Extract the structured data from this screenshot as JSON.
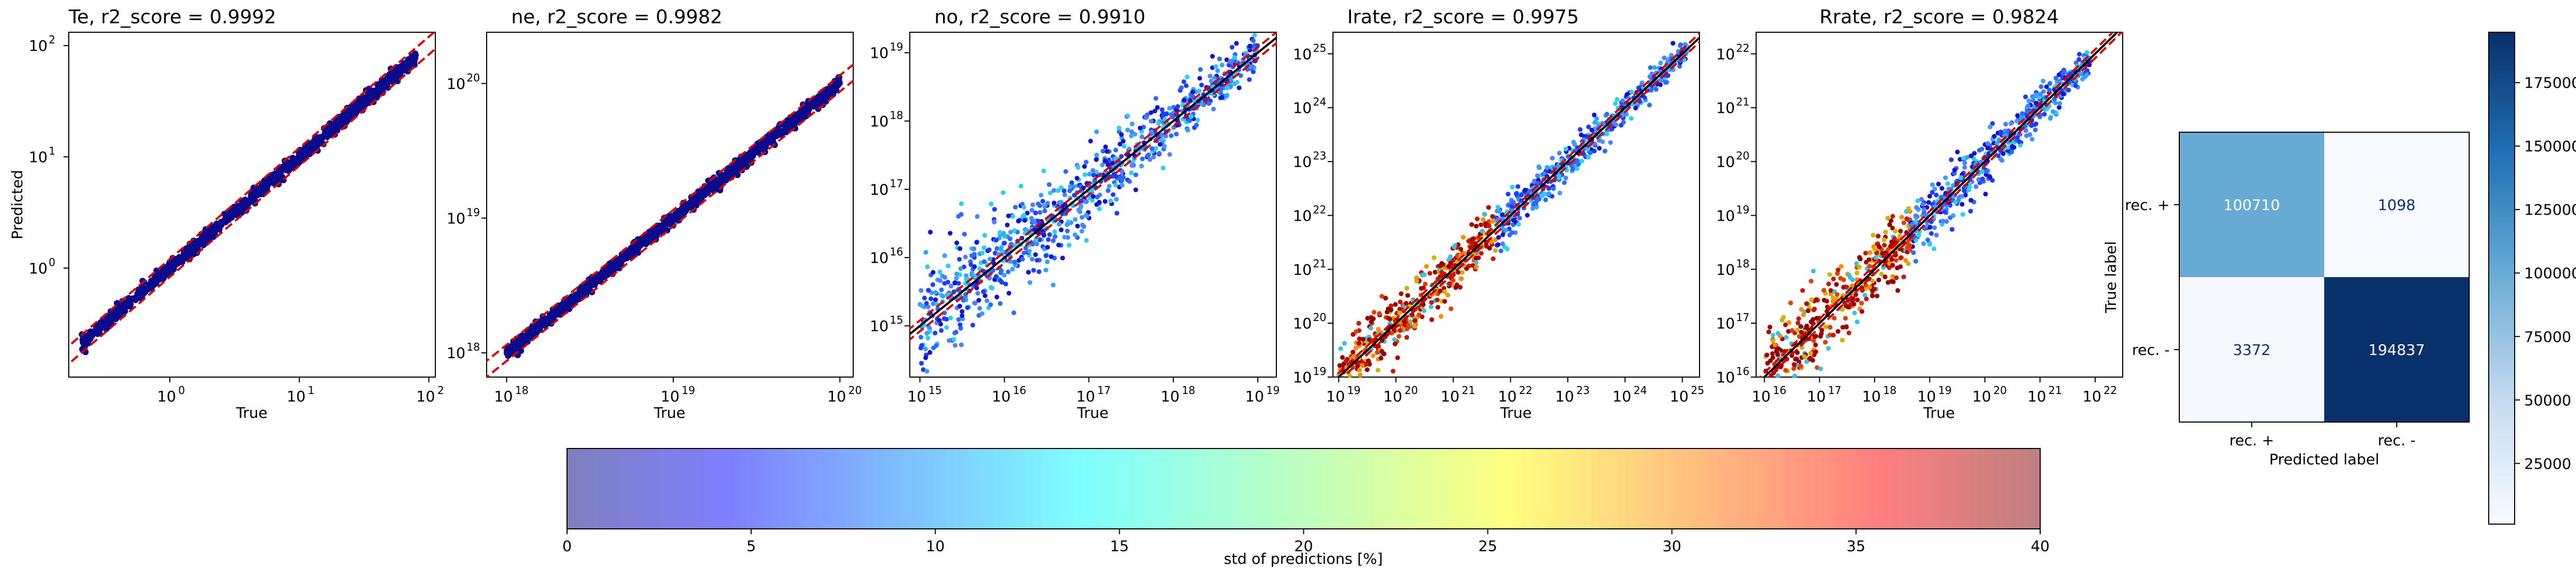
{
  "colors": {
    "point_dark": "#0a0a8c",
    "identity_line": "#000000",
    "band_line": "#d40000",
    "cm_high": "#08306b",
    "cm_mid": "#6baed6",
    "cm_low": "#f7fbff"
  },
  "chart_data": [
    {
      "type": "scatter",
      "title": "Te, r2_score = 0.9992",
      "xlabel": "True",
      "ylabel": "Predicted",
      "log_scale": true,
      "xlim_exp": [
        -0.78,
        2.05
      ],
      "ylim_exp": [
        -0.98,
        2.12
      ],
      "x_ticks": [
        {
          "label": "10",
          "exp": "0",
          "value": 0
        },
        {
          "label": "10",
          "exp": "1",
          "value": 1
        },
        {
          "label": "10",
          "exp": "2",
          "value": 2
        }
      ],
      "y_ticks": [
        {
          "label": "10",
          "exp": "0",
          "value": 0
        },
        {
          "label": "10",
          "exp": "1",
          "value": 1
        },
        {
          "label": "10",
          "exp": "2",
          "value": 2
        }
      ],
      "data_range_exp": [
        -0.68,
        1.9
      ],
      "spread_dex": 0.03,
      "band_dex": 0.08,
      "color_mode": "dark",
      "show_identity": false
    },
    {
      "type": "scatter",
      "title": "ne, r2_score = 0.9982",
      "xlabel": "True",
      "ylabel": "",
      "log_scale": true,
      "xlim_exp": [
        17.88,
        20.08
      ],
      "ylim_exp": [
        17.82,
        20.38
      ],
      "x_ticks": [
        {
          "label": "10",
          "exp": "18",
          "value": 18
        },
        {
          "label": "10",
          "exp": "19",
          "value": 19
        },
        {
          "label": "10",
          "exp": "20",
          "value": 20
        }
      ],
      "y_ticks": [
        {
          "label": "10",
          "exp": "18",
          "value": 18
        },
        {
          "label": "10",
          "exp": "19",
          "value": 19
        },
        {
          "label": "10",
          "exp": "20",
          "value": 20
        }
      ],
      "data_range_exp": [
        18.0,
        20.0
      ],
      "spread_dex": 0.025,
      "band_dex": 0.06,
      "color_mode": "dark",
      "show_identity": false
    },
    {
      "type": "scatter",
      "title": "no, r2_score = 0.9910",
      "xlabel": "True",
      "ylabel": "",
      "log_scale": true,
      "xlim_exp": [
        14.88,
        19.22
      ],
      "ylim_exp": [
        14.25,
        19.3
      ],
      "x_ticks": [
        {
          "label": "10",
          "exp": "15",
          "value": 15
        },
        {
          "label": "10",
          "exp": "16",
          "value": 16
        },
        {
          "label": "10",
          "exp": "17",
          "value": 17
        },
        {
          "label": "10",
          "exp": "18",
          "value": 18
        },
        {
          "label": "10",
          "exp": "19",
          "value": 19
        }
      ],
      "y_ticks": [
        {
          "label": "10",
          "exp": "15",
          "value": 15
        },
        {
          "label": "10",
          "exp": "16",
          "value": 16
        },
        {
          "label": "10",
          "exp": "17",
          "value": 17
        },
        {
          "label": "10",
          "exp": "18",
          "value": 18
        },
        {
          "label": "10",
          "exp": "19",
          "value": 19
        }
      ],
      "data_range_exp": [
        15.0,
        19.0
      ],
      "spread_dex": 0.3,
      "band_dex": 0.08,
      "color_mode": "blue_mix",
      "show_identity": true
    },
    {
      "type": "scatter",
      "title": "Irate, r2_score = 0.9975",
      "xlabel": "True",
      "ylabel": "",
      "log_scale": true,
      "xlim_exp": [
        18.9,
        25.3
      ],
      "ylim_exp": [
        19.0,
        25.4
      ],
      "x_ticks": [
        {
          "label": "10",
          "exp": "19",
          "value": 19
        },
        {
          "label": "10",
          "exp": "20",
          "value": 20
        },
        {
          "label": "10",
          "exp": "21",
          "value": 21
        },
        {
          "label": "10",
          "exp": "22",
          "value": 22
        },
        {
          "label": "10",
          "exp": "23",
          "value": 23
        },
        {
          "label": "10",
          "exp": "24",
          "value": 24
        },
        {
          "label": "10",
          "exp": "25",
          "value": 25
        }
      ],
      "y_ticks": [
        {
          "label": "10",
          "exp": "19",
          "value": 19
        },
        {
          "label": "10",
          "exp": "20",
          "value": 20
        },
        {
          "label": "10",
          "exp": "21",
          "value": 21
        },
        {
          "label": "10",
          "exp": "22",
          "value": 22
        },
        {
          "label": "10",
          "exp": "23",
          "value": 23
        },
        {
          "label": "10",
          "exp": "24",
          "value": 24
        },
        {
          "label": "10",
          "exp": "25",
          "value": 25
        }
      ],
      "data_range_exp": [
        19.0,
        25.1
      ],
      "spread_dex": 0.2,
      "band_dex": 0.08,
      "color_mode": "red_mix",
      "show_identity": true
    },
    {
      "type": "scatter",
      "title": "Rrate, r2_score = 0.9824",
      "xlabel": "True",
      "ylabel": "",
      "log_scale": true,
      "xlim_exp": [
        15.85,
        22.5
      ],
      "ylim_exp": [
        16.0,
        22.4
      ],
      "x_ticks": [
        {
          "label": "10",
          "exp": "16",
          "value": 16
        },
        {
          "label": "10",
          "exp": "17",
          "value": 17
        },
        {
          "label": "10",
          "exp": "18",
          "value": 18
        },
        {
          "label": "10",
          "exp": "19",
          "value": 19
        },
        {
          "label": "10",
          "exp": "20",
          "value": 20
        },
        {
          "label": "10",
          "exp": "21",
          "value": 21
        },
        {
          "label": "10",
          "exp": "22",
          "value": 22
        }
      ],
      "y_ticks": [
        {
          "label": "10",
          "exp": "16",
          "value": 16
        },
        {
          "label": "10",
          "exp": "17",
          "value": 17
        },
        {
          "label": "10",
          "exp": "18",
          "value": 18
        },
        {
          "label": "10",
          "exp": "19",
          "value": 19
        },
        {
          "label": "10",
          "exp": "20",
          "value": 20
        },
        {
          "label": "10",
          "exp": "21",
          "value": 21
        },
        {
          "label": "10",
          "exp": "22",
          "value": 22
        }
      ],
      "data_range_exp": [
        16.0,
        21.9
      ],
      "spread_dex": 0.3,
      "band_dex": 0.08,
      "color_mode": "red_mix",
      "show_identity": true
    },
    {
      "type": "heatmap",
      "subtype": "confusion_matrix",
      "xlabel": "Predicted label",
      "ylabel": "True label",
      "x_categories": [
        "rec. +",
        "rec. -"
      ],
      "y_categories": [
        "rec. +",
        "rec. -"
      ],
      "values": [
        [
          100710,
          1098
        ],
        [
          3372,
          194837
        ]
      ],
      "colorbar_range": [
        1098,
        194837
      ],
      "colorbar_ticks": [
        "25000",
        "50000",
        "75000",
        "100000",
        "125000",
        "150000",
        "175000"
      ],
      "colorbar_tick_values": [
        25000,
        50000,
        75000,
        100000,
        125000,
        150000,
        175000
      ]
    }
  ],
  "colorbar": {
    "label": "std of predictions [%]",
    "range": [
      0,
      40
    ],
    "ticks": [
      "0",
      "5",
      "10",
      "15",
      "20",
      "25",
      "30",
      "35",
      "40"
    ],
    "tick_values": [
      0,
      5,
      10,
      15,
      20,
      25,
      30,
      35,
      40
    ],
    "colormap": "jet",
    "alpha": 0.5
  }
}
